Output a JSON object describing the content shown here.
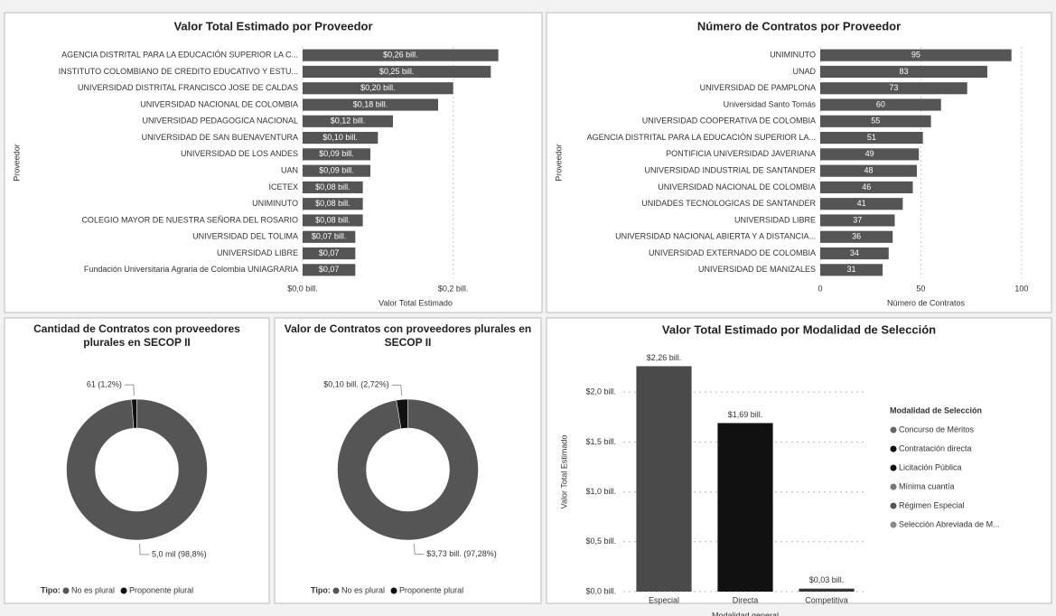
{
  "chart_data": [
    {
      "type": "hbar",
      "title": "Valor Total Estimado por Proveedor",
      "x_label": "Valor Total Estimado",
      "y_label": "Proveedor",
      "categories": [
        "AGENCIA DISTRITAL PARA LA EDUCACIÓN SUPERIOR LA C...",
        "INSTITUTO COLOMBIANO DE CREDITO EDUCATIVO Y ESTU...",
        "UNIVERSIDAD DISTRITAL FRANCISCO JOSE DE CALDAS",
        "UNIVERSIDAD NACIONAL DE COLOMBIA",
        "UNIVERSIDAD PEDAGOGICA NACIONAL",
        "UNIVERSIDAD DE SAN BUENAVENTURA",
        "UNIVERSIDAD DE LOS ANDES",
        "UAN",
        "ICETEX",
        "UNIMINUTO",
        "COLEGIO MAYOR DE NUESTRA SEÑORA DEL ROSARIO",
        "UNIVERSIDAD DEL TOLIMA",
        "UNIVERSIDAD LIBRE",
        "Fundación Universitaria Agraria de Colombia UNIAGRARIA"
      ],
      "values": [
        0.26,
        0.25,
        0.2,
        0.18,
        0.12,
        0.1,
        0.09,
        0.09,
        0.08,
        0.08,
        0.08,
        0.07,
        0.07,
        0.07
      ],
      "value_labels": [
        "$0,26 bill.",
        "$0,25 bill.",
        "$0,20 bill.",
        "$0,18 bill.",
        "$0,12 bill.",
        "$0,10 bill.",
        "$0,09 bill.",
        "$0,09 bill.",
        "$0,08 bill.",
        "$0,08 bill.",
        "$0,08 bill.",
        "$0,07 bill.",
        "$0,07",
        "$0,07"
      ],
      "color": "#555555",
      "xlim": [
        0,
        0.3
      ],
      "xticks": [
        {
          "value": 0,
          "label": "$0,0 bill."
        },
        {
          "value": 0.2,
          "label": "$0,2 bill."
        }
      ],
      "grid": true
    },
    {
      "type": "hbar",
      "title": "Número de Contratos por Proveedor",
      "x_label": "Número de Contratos",
      "y_label": "Proveedor",
      "categories": [
        "UNIMINUTO",
        "UNAD",
        "UNIVERSIDAD DE PAMPLONA",
        "Universidad Santo Tomás",
        "UNIVERSIDAD COOPERATIVA DE COLOMBIA",
        "AGENCIA DISTRITAL PARA LA EDUCACIÓN SUPERIOR LA...",
        "PONTIFICIA UNIVERSIDAD JAVERIANA",
        "UNIVERSIDAD INDUSTRIAL DE SANTANDER",
        "UNIVERSIDAD NACIONAL DE COLOMBIA",
        "UNIDADES TECNOLOGICAS DE SANTANDER",
        "UNIVERSIDAD LIBRE",
        "UNIVERSIDAD NACIONAL ABIERTA Y A DISTANCIA...",
        "UNIVERSIDAD EXTERNADO DE COLOMBIA",
        "UNIVERSIDAD DE MANIZALES"
      ],
      "values": [
        95,
        83,
        73,
        60,
        55,
        51,
        49,
        48,
        46,
        41,
        37,
        36,
        34,
        31
      ],
      "color": "#555555",
      "xlim": [
        0,
        105
      ],
      "xticks": [
        0,
        50,
        100
      ],
      "grid": true
    },
    {
      "type": "donut",
      "title": "Cantidad de Contratos con proveedores plurales en SECOP II",
      "legend_title": "Tipo:",
      "categories": [
        "No es plural",
        "Proponente plural"
      ],
      "values": [
        5012,
        61
      ],
      "value_labels": [
        "5,0 mil (98,8%)",
        "61 (1,2%)"
      ],
      "colors": [
        "#555555",
        "#111111"
      ]
    },
    {
      "type": "donut",
      "title": "Valor de Contratos con proveedores plurales en SECOP II",
      "legend_title": "Tipo:",
      "categories": [
        "No es plural",
        "Proponente plural"
      ],
      "values": [
        3.73,
        0.1
      ],
      "value_labels": [
        "$3,73 bill. (97,28%)",
        "$0,10 bill. (2,72%)"
      ],
      "colors": [
        "#555555",
        "#111111"
      ]
    },
    {
      "type": "bar",
      "title": "Valor Total Estimado por Modalidad de Selección",
      "x_label": "Modalidad general",
      "y_label": "Valor Total Estimado",
      "categories": [
        "Especial",
        "Directa",
        "Competitiva"
      ],
      "values": [
        2.26,
        1.69,
        0.03
      ],
      "value_labels": [
        "$2,26 bill.",
        "$1,69 bill.",
        "$0,03 bill."
      ],
      "colors": [
        "#4a4a4a",
        "#111111",
        "#333333"
      ],
      "ylim": [
        0,
        2.4
      ],
      "yticks": [
        {
          "value": 0,
          "label": "$0,0 bill."
        },
        {
          "value": 0.5,
          "label": "$0,5 bill."
        },
        {
          "value": 1,
          "label": "$1,0 bill."
        },
        {
          "value": 1.5,
          "label": "$1,5 bill."
        },
        {
          "value": 2,
          "label": "$2,0 bill."
        }
      ],
      "grid": true,
      "legend": {
        "title": "Modalidad de Selección",
        "items": [
          "Concurso de Méritos",
          "Contratación directa",
          "Licitación Pública",
          "Mínima cuantía",
          "Régimen Especial",
          "Selección Abreviada de M..."
        ],
        "colors": [
          "#666666",
          "#111111",
          "#111111",
          "#777777",
          "#555555",
          "#888888"
        ]
      }
    }
  ]
}
